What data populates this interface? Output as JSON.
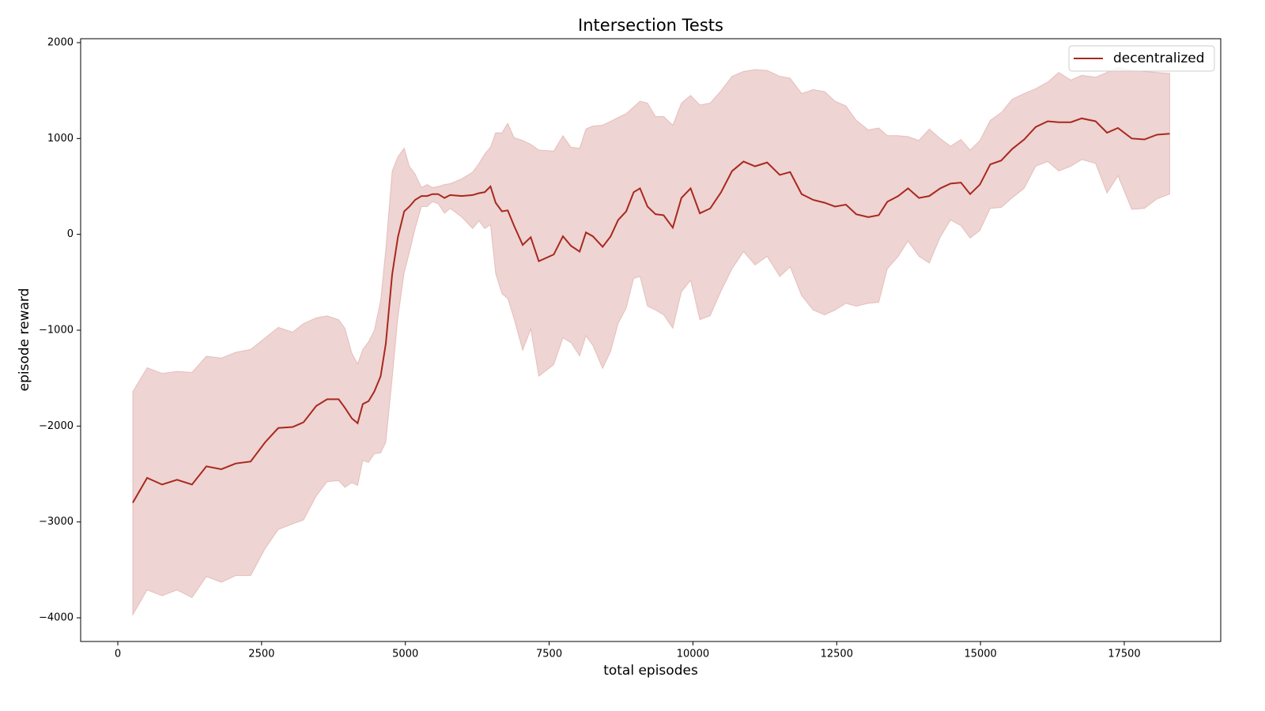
{
  "chart_data": {
    "type": "line",
    "title": "Intersection Tests",
    "x_label": "total episodes",
    "y_label": "episode reward",
    "x": [
      260,
      510,
      770,
      1030,
      1290,
      1540,
      1800,
      2050,
      2310,
      2560,
      2790,
      3040,
      3230,
      3450,
      3640,
      3840,
      3950,
      4070,
      4170,
      4260,
      4360,
      4460,
      4570,
      4660,
      4770,
      4870,
      4980,
      5070,
      5170,
      5280,
      5380,
      5470,
      5570,
      5680,
      5780,
      5980,
      6170,
      6280,
      6380,
      6480,
      6570,
      6680,
      6780,
      6890,
      7040,
      7180,
      7320,
      7580,
      7740,
      7880,
      8030,
      8140,
      8260,
      8430,
      8570,
      8700,
      8840,
      8970,
      9080,
      9210,
      9350,
      9490,
      9650,
      9800,
      9960,
      10120,
      10300,
      10490,
      10680,
      10880,
      11080,
      11290,
      11510,
      11690,
      11890,
      12090,
      12290,
      12470,
      12660,
      12840,
      13050,
      13230,
      13380,
      13570,
      13740,
      13930,
      14110,
      14300,
      14480,
      14660,
      14820,
      14990,
      15170,
      15360,
      15550,
      15760,
      15960,
      16170,
      16360,
      16570,
      16760,
      17000,
      17200,
      17390,
      17630,
      17850,
      18070,
      18290
    ],
    "series": [
      {
        "name": "decentralized",
        "color": "#a8281e",
        "values": [
          -2800,
          -2540,
          -2610,
          -2560,
          -2610,
          -2420,
          -2450,
          -2390,
          -2370,
          -2170,
          -2020,
          -2010,
          -1960,
          -1790,
          -1720,
          -1720,
          -1810,
          -1920,
          -1970,
          -1770,
          -1740,
          -1640,
          -1480,
          -1140,
          -420,
          -30,
          240,
          290,
          360,
          400,
          400,
          420,
          420,
          380,
          410,
          400,
          410,
          430,
          440,
          500,
          330,
          240,
          250,
          90,
          -110,
          -30,
          -280,
          -210,
          -20,
          -120,
          -180,
          20,
          -20,
          -130,
          -20,
          150,
          240,
          440,
          480,
          290,
          210,
          200,
          70,
          380,
          480,
          220,
          270,
          440,
          660,
          760,
          710,
          750,
          620,
          650,
          420,
          360,
          330,
          290,
          310,
          210,
          180,
          200,
          340,
          400,
          480,
          380,
          400,
          480,
          530,
          540,
          420,
          520,
          730,
          770,
          890,
          990,
          1120,
          1180,
          1170,
          1170,
          1210,
          1180,
          1060,
          1110,
          1000,
          990,
          1040,
          1050
        ],
        "upper": [
          -1640,
          -1390,
          -1450,
          -1430,
          -1440,
          -1270,
          -1290,
          -1230,
          -1200,
          -1080,
          -970,
          -1020,
          -930,
          -870,
          -850,
          -890,
          -980,
          -1240,
          -1350,
          -1200,
          -1120,
          -1000,
          -690,
          -150,
          660,
          810,
          900,
          710,
          630,
          490,
          520,
          490,
          500,
          520,
          530,
          580,
          650,
          740,
          840,
          910,
          1060,
          1060,
          1160,
          1010,
          980,
          940,
          880,
          870,
          1030,
          910,
          900,
          1100,
          1130,
          1140,
          1180,
          1220,
          1260,
          1330,
          1390,
          1370,
          1230,
          1230,
          1140,
          1370,
          1450,
          1350,
          1370,
          1500,
          1650,
          1700,
          1720,
          1710,
          1650,
          1630,
          1470,
          1510,
          1490,
          1390,
          1340,
          1190,
          1090,
          1110,
          1030,
          1030,
          1020,
          980,
          1100,
          1000,
          920,
          990,
          880,
          980,
          1190,
          1270,
          1410,
          1470,
          1520,
          1590,
          1690,
          1610,
          1660,
          1640,
          1690,
          1740,
          1710,
          1700,
          1690,
          1680
        ],
        "lower": [
          -3970,
          -3710,
          -3770,
          -3710,
          -3790,
          -3570,
          -3630,
          -3560,
          -3560,
          -3280,
          -3080,
          -3020,
          -2980,
          -2730,
          -2580,
          -2570,
          -2640,
          -2590,
          -2620,
          -2360,
          -2380,
          -2290,
          -2280,
          -2170,
          -1510,
          -870,
          -400,
          -190,
          60,
          290,
          290,
          340,
          320,
          220,
          270,
          180,
          60,
          140,
          60,
          100,
          -410,
          -620,
          -670,
          -880,
          -1210,
          -990,
          -1480,
          -1360,
          -1080,
          -1130,
          -1270,
          -1060,
          -1160,
          -1400,
          -1220,
          -930,
          -770,
          -460,
          -440,
          -750,
          -790,
          -840,
          -980,
          -600,
          -480,
          -890,
          -850,
          -590,
          -360,
          -180,
          -320,
          -230,
          -440,
          -340,
          -640,
          -790,
          -840,
          -790,
          -720,
          -750,
          -720,
          -710,
          -360,
          -230,
          -70,
          -230,
          -300,
          -30,
          150,
          90,
          -40,
          40,
          270,
          280,
          380,
          480,
          710,
          760,
          660,
          710,
          780,
          740,
          430,
          610,
          260,
          270,
          370,
          420
        ]
      }
    ],
    "xlim": [
      -646,
      19177
    ],
    "xticks": [
      0,
      2500,
      5000,
      7500,
      10000,
      12500,
      15000,
      17500
    ],
    "ylim": [
      -4247,
      2041
    ],
    "yticks": [
      {
        "value": -4000,
        "label": "−4000"
      },
      {
        "value": -3000,
        "label": "−3000"
      },
      {
        "value": -2000,
        "label": "−2000"
      },
      {
        "value": -1000,
        "label": "−1000"
      },
      0,
      1000,
      2000
    ],
    "legend": "upper right",
    "band_opacity": 0.2
  }
}
